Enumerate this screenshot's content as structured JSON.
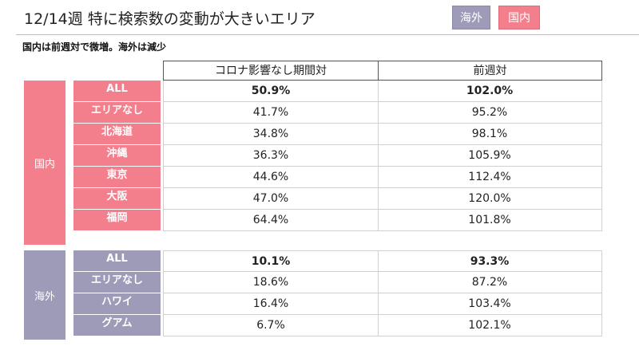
{
  "header": {
    "title": "12/14週 特に検索数の変動が大きいエリア",
    "tags": {
      "overseas": "海外",
      "domestic": "国内"
    }
  },
  "subtitle": "国内は前週対で微増。海外は減少",
  "columns": {
    "vs_precovid": "コロナ影響なし期間対",
    "vs_prev_week": "前週対"
  },
  "colors": {
    "domestic": "#f37f8d",
    "overseas": "#9d9bb8"
  },
  "domestic": {
    "label": "国内",
    "rows": [
      {
        "area": "ALL",
        "vs_precovid": "50.9%",
        "vs_prev_week": "102.0%"
      },
      {
        "area": "エリアなし",
        "vs_precovid": "41.7%",
        "vs_prev_week": "95.2%"
      },
      {
        "area": "北海道",
        "vs_precovid": "34.8%",
        "vs_prev_week": "98.1%"
      },
      {
        "area": "沖縄",
        "vs_precovid": "36.3%",
        "vs_prev_week": "105.9%"
      },
      {
        "area": "東京",
        "vs_precovid": "44.6%",
        "vs_prev_week": "112.4%"
      },
      {
        "area": "大阪",
        "vs_precovid": "47.0%",
        "vs_prev_week": "120.0%"
      },
      {
        "area": "福岡",
        "vs_precovid": "64.4%",
        "vs_prev_week": "101.8%"
      }
    ]
  },
  "overseas": {
    "label": "海外",
    "rows": [
      {
        "area": "ALL",
        "vs_precovid": "10.1%",
        "vs_prev_week": "93.3%"
      },
      {
        "area": "エリアなし",
        "vs_precovid": "18.6%",
        "vs_prev_week": "87.2%"
      },
      {
        "area": "ハワイ",
        "vs_precovid": "16.4%",
        "vs_prev_week": "103.4%"
      },
      {
        "area": "グアム",
        "vs_precovid": "6.7%",
        "vs_prev_week": "102.1%"
      }
    ]
  }
}
